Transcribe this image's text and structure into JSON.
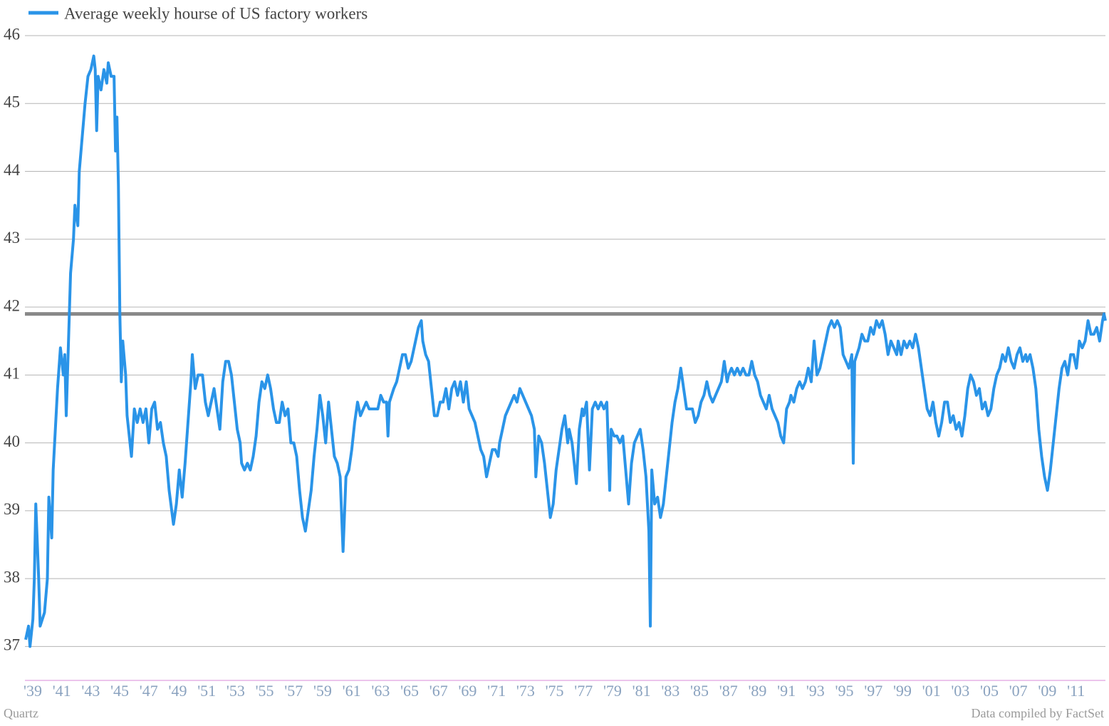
{
  "chart_data": {
    "type": "line",
    "credit": "Quartz",
    "source": "Data compiled by FactSet",
    "legend": "top-left",
    "grid": true,
    "reference_line": 41.9,
    "reference_color": "#888888",
    "xlim": [
      1939,
      2013.5
    ],
    "xticks": [
      {
        "value": 1939,
        "label": "'39"
      },
      {
        "value": 1941,
        "label": "'41"
      },
      {
        "value": 1943,
        "label": "'43"
      },
      {
        "value": 1945,
        "label": "'45"
      },
      {
        "value": 1947,
        "label": "'47"
      },
      {
        "value": 1949,
        "label": "'49"
      },
      {
        "value": 1951,
        "label": "'51"
      },
      {
        "value": 1953,
        "label": "'53"
      },
      {
        "value": 1955,
        "label": "'55"
      },
      {
        "value": 1957,
        "label": "'57"
      },
      {
        "value": 1959,
        "label": "'59"
      },
      {
        "value": 1961,
        "label": "'61"
      },
      {
        "value": 1963,
        "label": "'63"
      },
      {
        "value": 1965,
        "label": "'65"
      },
      {
        "value": 1967,
        "label": "'67"
      },
      {
        "value": 1969,
        "label": "'69"
      },
      {
        "value": 1971,
        "label": "'71"
      },
      {
        "value": 1973,
        "label": "'73"
      },
      {
        "value": 1975,
        "label": "'75"
      },
      {
        "value": 1977,
        "label": "'77"
      },
      {
        "value": 1979,
        "label": "'79"
      },
      {
        "value": 1981,
        "label": "'81"
      },
      {
        "value": 1983,
        "label": "'83"
      },
      {
        "value": 1985,
        "label": "'85"
      },
      {
        "value": 1987,
        "label": "'87"
      },
      {
        "value": 1989,
        "label": "'89"
      },
      {
        "value": 1991,
        "label": "'91"
      },
      {
        "value": 1993,
        "label": "'93"
      },
      {
        "value": 1995,
        "label": "'95"
      },
      {
        "value": 1997,
        "label": "'97"
      },
      {
        "value": 1999,
        "label": "'99"
      },
      {
        "value": 2001,
        "label": "'01"
      },
      {
        "value": 2003,
        "label": "'03"
      },
      {
        "value": 2005,
        "label": "'05"
      },
      {
        "value": 2007,
        "label": "'07"
      },
      {
        "value": 2009,
        "label": "'09"
      },
      {
        "value": 2011,
        "label": "'11"
      }
    ],
    "ylim": [
      36.5,
      46
    ],
    "yticks": [
      37,
      38,
      39,
      40,
      41,
      42,
      43,
      44,
      45,
      46
    ],
    "x": [
      1939.0,
      1939.2,
      1939.3,
      1939.5,
      1939.6,
      1939.7,
      1939.9,
      1940.0,
      1940.3,
      1940.5,
      1940.6,
      1940.8,
      1940.9,
      1941.1,
      1941.2,
      1941.4,
      1941.6,
      1941.7,
      1941.8,
      1942.0,
      1942.1,
      1942.3,
      1942.4,
      1942.6,
      1942.7,
      1942.9,
      1943.1,
      1943.3,
      1943.5,
      1943.7,
      1943.8,
      1943.9,
      1944.0,
      1944.2,
      1944.4,
      1944.6,
      1944.7,
      1944.9,
      1945.1,
      1945.2,
      1945.3,
      1945.4,
      1945.5,
      1945.6,
      1945.7,
      1945.9,
      1946.0,
      1946.3,
      1946.5,
      1946.7,
      1946.9,
      1947.1,
      1947.3,
      1947.5,
      1947.7,
      1947.9,
      1948.1,
      1948.3,
      1948.5,
      1948.7,
      1948.9,
      1949.2,
      1949.4,
      1949.6,
      1949.8,
      1950.0,
      1950.2,
      1950.4,
      1950.5,
      1950.7,
      1950.9,
      1951.2,
      1951.4,
      1951.6,
      1951.8,
      1952.0,
      1952.2,
      1952.4,
      1952.6,
      1952.8,
      1953.0,
      1953.2,
      1953.4,
      1953.6,
      1953.8,
      1953.9,
      1954.1,
      1954.3,
      1954.5,
      1954.7,
      1954.9,
      1955.1,
      1955.3,
      1955.5,
      1955.7,
      1955.9,
      1956.1,
      1956.3,
      1956.5,
      1956.7,
      1956.9,
      1957.1,
      1957.3,
      1957.5,
      1957.7,
      1957.9,
      1958.1,
      1958.3,
      1958.5,
      1958.7,
      1958.9,
      1959.1,
      1959.3,
      1959.5,
      1959.7,
      1959.9,
      1960.1,
      1960.3,
      1960.5,
      1960.7,
      1960.9,
      1961.1,
      1961.3,
      1961.5,
      1961.7,
      1961.9,
      1962.1,
      1962.3,
      1962.5,
      1962.7,
      1962.9,
      1963.1,
      1963.3,
      1963.5,
      1963.7,
      1963.9,
      1964.0,
      1964.1,
      1964.4,
      1964.6,
      1964.8,
      1965.0,
      1965.2,
      1965.4,
      1965.6,
      1965.7,
      1965.9,
      1966.1,
      1966.3,
      1966.4,
      1966.6,
      1966.8,
      1967.0,
      1967.2,
      1967.4,
      1967.6,
      1967.8,
      1968.0,
      1968.2,
      1968.4,
      1968.6,
      1968.8,
      1969.0,
      1969.2,
      1969.4,
      1969.6,
      1969.8,
      1970.0,
      1970.2,
      1970.4,
      1970.6,
      1970.8,
      1971.0,
      1971.2,
      1971.4,
      1971.6,
      1971.7,
      1971.9,
      1972.1,
      1972.3,
      1972.5,
      1972.7,
      1972.9,
      1973.1,
      1973.3,
      1973.5,
      1973.7,
      1973.9,
      1974.1,
      1974.2,
      1974.4,
      1974.6,
      1974.8,
      1975.0,
      1975.2,
      1975.4,
      1975.6,
      1975.8,
      1976.0,
      1976.2,
      1976.4,
      1976.5,
      1976.7,
      1976.9,
      1977.0,
      1977.2,
      1977.4,
      1977.5,
      1977.7,
      1977.9,
      1978.1,
      1978.3,
      1978.5,
      1978.7,
      1978.9,
      1979.1,
      1979.3,
      1979.4,
      1979.6,
      1979.8,
      1980.0,
      1980.2,
      1980.4,
      1980.6,
      1980.8,
      1981.0,
      1981.2,
      1981.4,
      1981.6,
      1981.8,
      1982.0,
      1982.1,
      1982.2,
      1982.4,
      1982.6,
      1982.8,
      1983.0,
      1983.2,
      1983.4,
      1983.6,
      1983.8,
      1984.0,
      1984.2,
      1984.4,
      1984.6,
      1984.8,
      1985.0,
      1985.2,
      1985.4,
      1985.6,
      1985.8,
      1986.0,
      1986.2,
      1986.4,
      1986.6,
      1986.8,
      1987.0,
      1987.2,
      1987.4,
      1987.5,
      1987.7,
      1987.9,
      1988.1,
      1988.3,
      1988.5,
      1988.7,
      1988.9,
      1989.1,
      1989.3,
      1989.5,
      1989.7,
      1989.9,
      1990.1,
      1990.3,
      1990.5,
      1990.7,
      1990.9,
      1991.1,
      1991.3,
      1991.5,
      1991.7,
      1991.8,
      1992.0,
      1992.2,
      1992.4,
      1992.6,
      1992.8,
      1993.0,
      1993.2,
      1993.4,
      1993.6,
      1993.8,
      1994.0,
      1994.2,
      1994.4,
      1994.6,
      1994.8,
      1995.0,
      1995.2,
      1995.4,
      1995.6,
      1995.8,
      1996.0,
      1996.1,
      1996.2,
      1996.5,
      1996.7,
      1996.9,
      1997.1,
      1997.3,
      1997.5,
      1997.7,
      1997.9,
      1998.1,
      1998.3,
      1998.5,
      1998.7,
      1998.9,
      1999.1,
      1999.2,
      1999.4,
      1999.6,
      1999.8,
      2000.0,
      2000.2,
      2000.4,
      2000.6,
      2000.8,
      2001.0,
      2001.2,
      2001.4,
      2001.6,
      2001.8,
      2002.0,
      2002.2,
      2002.4,
      2002.6,
      2002.8,
      2003.0,
      2003.2,
      2003.4,
      2003.6,
      2003.8,
      2004.0,
      2004.2,
      2004.4,
      2004.6,
      2004.8,
      2005.0,
      2005.2,
      2005.4,
      2005.6,
      2005.8,
      2006.0,
      2006.2,
      2006.4,
      2006.6,
      2006.8,
      2007.0,
      2007.2,
      2007.4,
      2007.6,
      2007.8,
      2008.0,
      2008.1,
      2008.3,
      2008.5,
      2008.7,
      2008.9,
      2009.1,
      2009.3,
      2009.5,
      2009.7,
      2009.9,
      2010.1,
      2010.3,
      2010.5,
      2010.7,
      2010.9,
      2011.1,
      2011.3,
      2011.5,
      2011.7,
      2011.9,
      2012.1,
      2012.3,
      2012.5,
      2012.7,
      2012.9,
      2013.1,
      2013.3,
      2013.4,
      2013.5
    ],
    "series": [
      {
        "name": "Average weekly hourse of US factory workers",
        "color": "#2a94e8",
        "values": [
          37.1,
          37.3,
          37.0,
          37.4,
          38.0,
          39.1,
          38.0,
          37.3,
          37.5,
          38.0,
          39.2,
          38.6,
          39.6,
          40.4,
          40.8,
          41.4,
          41.0,
          41.3,
          40.4,
          41.8,
          42.5,
          43.0,
          43.5,
          43.2,
          44.0,
          44.5,
          45.0,
          45.4,
          45.5,
          45.7,
          45.5,
          44.6,
          45.4,
          45.2,
          45.5,
          45.3,
          45.6,
          45.4,
          45.4,
          44.3,
          44.8,
          43.8,
          41.9,
          40.9,
          41.5,
          41.0,
          40.4,
          39.8,
          40.5,
          40.3,
          40.5,
          40.3,
          40.5,
          40.0,
          40.5,
          40.6,
          40.2,
          40.3,
          40.0,
          39.8,
          39.3,
          38.8,
          39.1,
          39.6,
          39.2,
          39.7,
          40.3,
          40.9,
          41.3,
          40.8,
          41.0,
          41.0,
          40.6,
          40.4,
          40.6,
          40.8,
          40.5,
          40.2,
          40.9,
          41.2,
          41.2,
          41.0,
          40.6,
          40.2,
          40.0,
          39.7,
          39.6,
          39.7,
          39.6,
          39.8,
          40.1,
          40.6,
          40.9,
          40.8,
          41.0,
          40.8,
          40.5,
          40.3,
          40.3,
          40.6,
          40.4,
          40.5,
          40.0,
          40.0,
          39.8,
          39.3,
          38.9,
          38.7,
          39.0,
          39.3,
          39.8,
          40.2,
          40.7,
          40.4,
          40.0,
          40.6,
          40.2,
          39.8,
          39.7,
          39.5,
          38.4,
          39.5,
          39.6,
          39.9,
          40.3,
          40.6,
          40.4,
          40.5,
          40.6,
          40.5,
          40.5,
          40.5,
          40.5,
          40.7,
          40.6,
          40.6,
          40.1,
          40.6,
          40.8,
          40.9,
          41.1,
          41.3,
          41.3,
          41.1,
          41.2,
          41.3,
          41.5,
          41.7,
          41.8,
          41.5,
          41.3,
          41.2,
          40.8,
          40.4,
          40.4,
          40.6,
          40.6,
          40.8,
          40.5,
          40.8,
          40.9,
          40.7,
          40.9,
          40.6,
          40.9,
          40.5,
          40.4,
          40.3,
          40.1,
          39.9,
          39.8,
          39.5,
          39.7,
          39.9,
          39.9,
          39.8,
          40.0,
          40.2,
          40.4,
          40.5,
          40.6,
          40.7,
          40.6,
          40.8,
          40.7,
          40.6,
          40.5,
          40.4,
          40.2,
          39.5,
          40.1,
          40.0,
          39.7,
          39.3,
          38.9,
          39.1,
          39.6,
          39.9,
          40.2,
          40.4,
          40.0,
          40.2,
          40.0,
          39.6,
          39.4,
          40.2,
          40.5,
          40.4,
          40.6,
          39.6,
          40.5,
          40.6,
          40.5,
          40.6,
          40.5,
          40.6,
          39.3,
          40.2,
          40.1,
          40.1,
          40.0,
          40.1,
          39.6,
          39.1,
          39.7,
          40.0,
          40.1,
          40.2,
          39.9,
          39.5,
          38.7,
          37.3,
          39.6,
          39.1,
          39.2,
          38.9,
          39.1,
          39.5,
          39.9,
          40.3,
          40.6,
          40.8,
          41.1,
          40.8,
          40.5,
          40.5,
          40.5,
          40.3,
          40.4,
          40.6,
          40.7,
          40.9,
          40.7,
          40.6,
          40.7,
          40.8,
          40.9,
          41.2,
          40.9,
          41.0,
          41.1,
          41.0,
          41.1,
          41.0,
          41.1,
          41.0,
          41.0,
          41.2,
          41.0,
          40.9,
          40.7,
          40.6,
          40.5,
          40.7,
          40.5,
          40.4,
          40.3,
          40.1,
          40.0,
          40.5,
          40.6,
          40.7,
          40.6,
          40.8,
          40.9,
          40.8,
          40.9,
          41.1,
          40.9,
          41.5,
          41.0,
          41.1,
          41.3,
          41.5,
          41.7,
          41.8,
          41.7,
          41.8,
          41.7,
          41.3,
          41.2,
          41.1,
          41.3,
          39.7,
          41.2,
          41.4,
          41.6,
          41.5,
          41.5,
          41.7,
          41.6,
          41.8,
          41.7,
          41.8,
          41.6,
          41.3,
          41.5,
          41.4,
          41.3,
          41.5,
          41.3,
          41.5,
          41.4,
          41.5,
          41.4,
          41.6,
          41.4,
          41.1,
          40.8,
          40.5,
          40.4,
          40.6,
          40.3,
          40.1,
          40.3,
          40.6,
          40.6,
          40.3,
          40.4,
          40.2,
          40.3,
          40.1,
          40.4,
          40.8,
          41.0,
          40.9,
          40.7,
          40.8,
          40.5,
          40.6,
          40.4,
          40.5,
          40.8,
          41.0,
          41.1,
          41.3,
          41.2,
          41.4,
          41.2,
          41.1,
          41.3,
          41.4,
          41.2,
          41.3,
          41.2,
          41.3,
          41.1,
          40.8,
          40.2,
          39.8,
          39.5,
          39.3,
          39.6,
          40.0,
          40.4,
          40.8,
          41.1,
          41.2,
          41.0,
          41.3,
          41.3,
          41.1,
          41.5,
          41.4,
          41.5,
          41.8,
          41.6,
          41.6,
          41.7,
          41.5,
          41.8,
          41.9,
          41.8
        ]
      }
    ]
  }
}
